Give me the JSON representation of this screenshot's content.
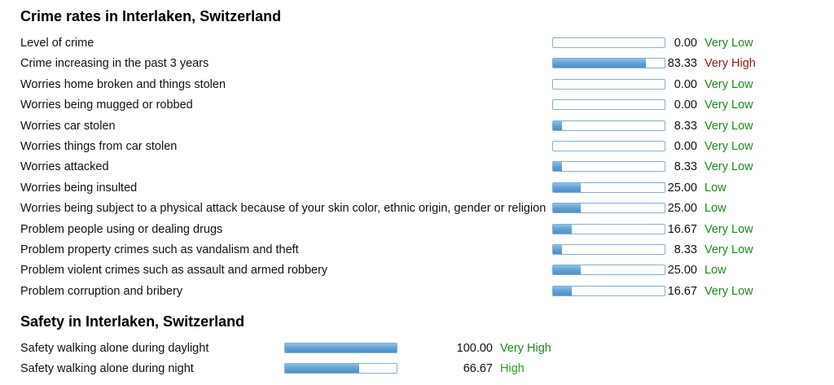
{
  "crime": {
    "title": "Crime rates in Interlaken, Switzerland",
    "rows": [
      {
        "label": "Level of crime",
        "value": "0.00",
        "rating": "Very Low"
      },
      {
        "label": "Crime increasing in the past 3 years",
        "value": "83.33",
        "rating": "Very High"
      },
      {
        "label": "Worries home broken and things stolen",
        "value": "0.00",
        "rating": "Very Low"
      },
      {
        "label": "Worries being mugged or robbed",
        "value": "0.00",
        "rating": "Very Low"
      },
      {
        "label": "Worries car stolen",
        "value": "8.33",
        "rating": "Very Low"
      },
      {
        "label": "Worries things from car stolen",
        "value": "0.00",
        "rating": "Very Low"
      },
      {
        "label": "Worries attacked",
        "value": "8.33",
        "rating": "Very Low"
      },
      {
        "label": "Worries being insulted",
        "value": "25.00",
        "rating": "Low"
      },
      {
        "label": "Worries being subject to a physical attack because of your skin color, ethnic origin, gender or religion",
        "value": "25.00",
        "rating": "Low"
      },
      {
        "label": "Problem people using or dealing drugs",
        "value": "16.67",
        "rating": "Very Low"
      },
      {
        "label": "Problem property crimes such as vandalism and theft",
        "value": "8.33",
        "rating": "Very Low"
      },
      {
        "label": "Problem violent crimes such as assault and armed robbery",
        "value": "25.00",
        "rating": "Low"
      },
      {
        "label": "Problem corruption and bribery",
        "value": "16.67",
        "rating": "Very Low"
      }
    ]
  },
  "safety": {
    "title": "Safety in Interlaken, Switzerland",
    "rows": [
      {
        "label": "Safety walking alone during daylight",
        "value": "100.00",
        "rating": "Very High"
      },
      {
        "label": "Safety walking alone during night",
        "value": "66.67",
        "rating": "High"
      }
    ]
  },
  "rating_colors": {
    "Very Low": "#1a8a1a",
    "Low": "#1a8a1a",
    "High": "#1a9a1a",
    "Very High": "#8b1a1a"
  },
  "safety_rating_colors": {
    "Very High": "#1a8a1a",
    "High": "#22a022"
  },
  "chart_data": {
    "type": "bar",
    "xlim": [
      0,
      100
    ],
    "tables": [
      {
        "title": "Crime rates in Interlaken, Switzerland",
        "categories": [
          "Level of crime",
          "Crime increasing in the past 3 years",
          "Worries home broken and things stolen",
          "Worries being mugged or robbed",
          "Worries car stolen",
          "Worries things from car stolen",
          "Worries attacked",
          "Worries being insulted",
          "Worries being subject to a physical attack because of your skin color, ethnic origin, gender or religion",
          "Problem people using or dealing drugs",
          "Problem property crimes such as vandalism and theft",
          "Problem violent crimes such as assault and armed robbery",
          "Problem corruption and bribery"
        ],
        "values": [
          0.0,
          83.33,
          0.0,
          0.0,
          8.33,
          0.0,
          8.33,
          25.0,
          25.0,
          16.67,
          8.33,
          25.0,
          16.67
        ]
      },
      {
        "title": "Safety in Interlaken, Switzerland",
        "categories": [
          "Safety walking alone during daylight",
          "Safety walking alone during night"
        ],
        "values": [
          100.0,
          66.67
        ]
      }
    ]
  }
}
